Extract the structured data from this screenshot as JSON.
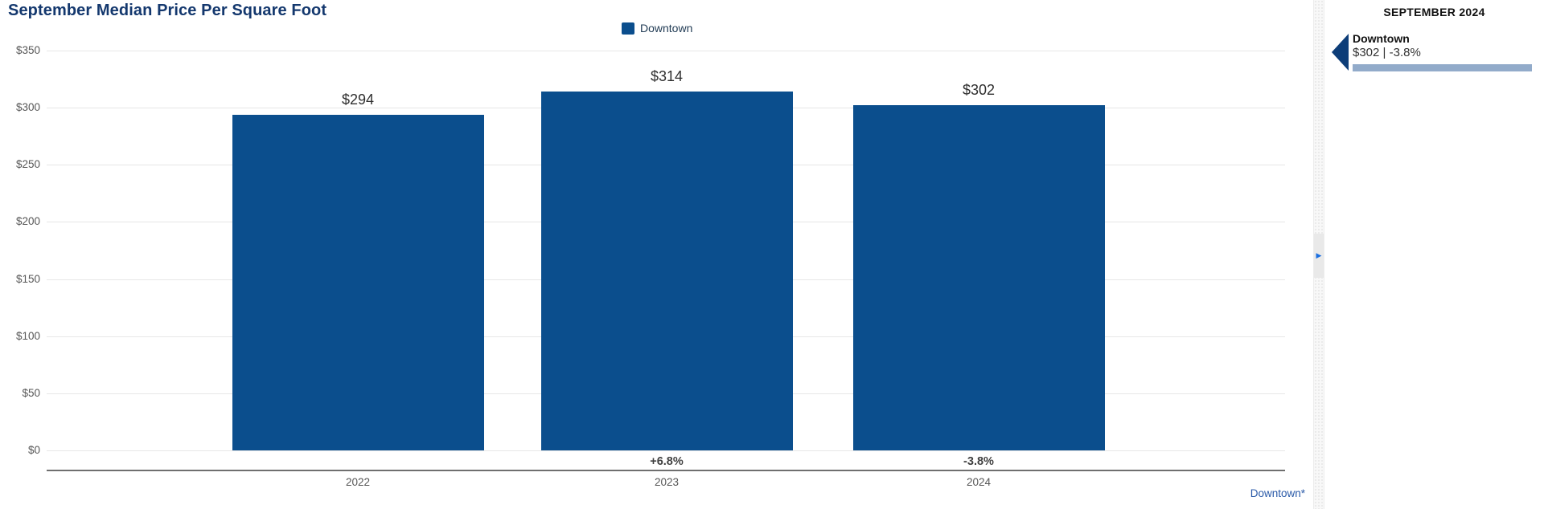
{
  "chart_data": {
    "type": "bar",
    "title": "September Median Price Per Square Foot",
    "categories": [
      "2022",
      "2023",
      "2024"
    ],
    "series": [
      {
        "name": "Downtown",
        "color": "#0b4e8d",
        "values": [
          294,
          314,
          302
        ],
        "value_labels": [
          "$294",
          "$314",
          "$302"
        ],
        "pct_change_labels": [
          "",
          "+6.8%",
          "-3.8%"
        ]
      }
    ],
    "ylim": [
      0,
      350
    ],
    "y_ticks": [
      0,
      50,
      100,
      150,
      200,
      250,
      300,
      350
    ],
    "y_tick_labels": [
      "$0",
      "$50",
      "$100",
      "$150",
      "$200",
      "$250",
      "$300",
      "$350"
    ],
    "grid": true,
    "legend": {
      "position": "top-center",
      "items": [
        {
          "label": "Downtown",
          "color": "#0b4e8d"
        }
      ]
    },
    "footnote": "Downtown*"
  },
  "sidebar": {
    "header": "SEPTEMBER 2024",
    "items": [
      {
        "label": "Downtown",
        "value_text": "$302 | -3.8%",
        "bar_color": "#92abca",
        "marker_color": "#0d3d78"
      }
    ]
  },
  "divider": {
    "expand_icon": "▶"
  },
  "colors": {
    "bar_blue": "#0b4e8d",
    "title_navy": "#14386e",
    "footnote_link_blue": "#2a5aa8",
    "sidebar_bar_blue": "#92abca",
    "marker_navy": "#0d3d78",
    "gridline_gray": "#e7e7e7",
    "axis_gray": "#6f6f6f"
  }
}
